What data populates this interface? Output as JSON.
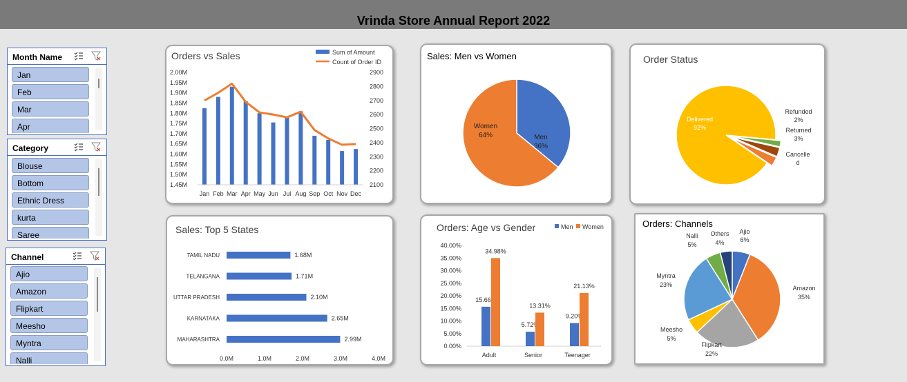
{
  "report_title": "Vrinda Store Annual Report 2022",
  "slicers": {
    "month": {
      "title": "Month Name",
      "items": [
        "Jan",
        "Feb",
        "Mar",
        "Apr"
      ]
    },
    "category": {
      "title": "Category",
      "items": [
        "Blouse",
        "Bottom",
        "Ethnic Dress",
        "kurta",
        "Saree"
      ]
    },
    "channel": {
      "title": "Channel",
      "items": [
        "Ajio",
        "Amazon",
        "Flipkart",
        "Meesho",
        "Myntra",
        "Nalli"
      ]
    }
  },
  "chart_data": [
    {
      "type": "bar",
      "title": "Orders vs Sales",
      "categories": [
        "Jan",
        "Feb",
        "Mar",
        "Apr",
        "May",
        "Jun",
        "Jul",
        "Aug",
        "Sep",
        "Oct",
        "Nov",
        "Dec"
      ],
      "series": [
        {
          "name": "Sum of Amount",
          "type": "bar",
          "axis": "left",
          "values": [
            1.825,
            1.88,
            1.93,
            1.86,
            1.8,
            1.755,
            1.78,
            1.81,
            1.69,
            1.67,
            1.615,
            1.625
          ]
        },
        {
          "name": "Count of Order ID",
          "type": "line",
          "axis": "right",
          "values": [
            2700,
            2755,
            2820,
            2690,
            2615,
            2600,
            2580,
            2620,
            2490,
            2430,
            2385,
            2390
          ]
        }
      ],
      "left_ticks": [
        "2.00M",
        "1.95M",
        "1.90M",
        "1.85M",
        "1.80M",
        "1.75M",
        "1.70M",
        "1.65M",
        "1.60M",
        "1.55M",
        "1.50M",
        "1.45M"
      ],
      "right_ticks": [
        "2900",
        "2800",
        "2700",
        "2600",
        "2500",
        "2400",
        "2300",
        "2200",
        "2100"
      ],
      "ylim_left": [
        1.45,
        2.0
      ],
      "ylim_right": [
        2100,
        2900
      ],
      "colors": {
        "bar": "#4472c4",
        "line": "#ed7d31"
      }
    },
    {
      "type": "pie",
      "title": "Sales: Men vs Women",
      "slices": [
        {
          "label": "Men",
          "pct_label": "36%",
          "value": 36,
          "color": "#4472c4"
        },
        {
          "label": "Women",
          "pct_label": "64%",
          "value": 64,
          "color": "#ed7d31"
        }
      ]
    },
    {
      "type": "pie",
      "title": "Order Status",
      "slices": [
        {
          "label": "Delivered",
          "pct_label": "92%",
          "value": 92,
          "color": "#ffc000"
        },
        {
          "label": "Refunded",
          "pct_label": "2%",
          "value": 2,
          "color": "#70ad47"
        },
        {
          "label": "Returned",
          "pct_label": "3%",
          "value": 3,
          "color": "#9e480e"
        },
        {
          "label": "Cancelled",
          "pct_label": "",
          "value": 3,
          "color": "#ed7d31"
        }
      ]
    },
    {
      "type": "bar",
      "title": "Sales: Top 5 States",
      "categories": [
        "TAMIL NADU",
        "TELANGANA",
        "UTTAR PRADESH",
        "KARNATAKA",
        "MAHARASHTRA"
      ],
      "values": [
        1.68,
        1.71,
        2.1,
        2.65,
        2.99
      ],
      "value_labels": [
        "1.68M",
        "1.71M",
        "2.10M",
        "2.65M",
        "2.99M"
      ],
      "x_ticks": [
        "0.0M",
        "1.0M",
        "2.0M",
        "3.0M",
        "4.0M"
      ],
      "xlim": [
        0,
        4
      ],
      "color": "#4472c4"
    },
    {
      "type": "bar",
      "title": "Orders: Age vs Gender",
      "categories": [
        "Adult",
        "Senior",
        "Teenager"
      ],
      "series": [
        {
          "name": "Men",
          "values": [
            15.66,
            5.72,
            9.2
          ],
          "labels": [
            "15.66%",
            "5.72%",
            "9.20%"
          ],
          "color": "#4472c4"
        },
        {
          "name": "Women",
          "values": [
            34.98,
            13.31,
            21.13
          ],
          "labels": [
            "34.98%",
            "13.31%",
            "21.13%"
          ],
          "color": "#ed7d31"
        }
      ],
      "y_ticks": [
        "40.00%",
        "35.00%",
        "30.00%",
        "25.00%",
        "20.00%",
        "15.00%",
        "10.00%",
        "5.00%",
        "0.00%"
      ],
      "ylim": [
        0,
        40
      ]
    },
    {
      "type": "pie",
      "title": "Orders: Channels",
      "slices": [
        {
          "label": "Ajio",
          "pct_label": "6%",
          "value": 6,
          "color": "#4472c4"
        },
        {
          "label": "Amazon",
          "pct_label": "35%",
          "value": 35,
          "color": "#ed7d31"
        },
        {
          "label": "Flipkart",
          "pct_label": "22%",
          "value": 22,
          "color": "#a5a5a5"
        },
        {
          "label": "Meesho",
          "pct_label": "5%",
          "value": 5,
          "color": "#ffc000"
        },
        {
          "label": "Myntra",
          "pct_label": "23%",
          "value": 23,
          "color": "#5b9bd5"
        },
        {
          "label": "Nalli",
          "pct_label": "5%",
          "value": 5,
          "color": "#70ad47"
        },
        {
          "label": "Others",
          "pct_label": "4%",
          "value": 4,
          "color": "#264478"
        }
      ]
    }
  ]
}
